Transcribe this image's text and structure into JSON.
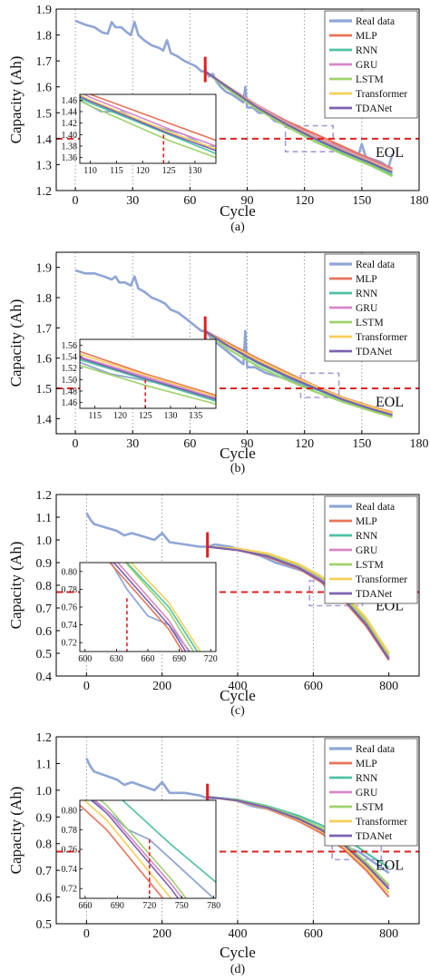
{
  "figure": {
    "series_names": [
      "Real data",
      "MLP",
      "RNN",
      "GRU",
      "LSTM",
      "Transformer",
      "TDANet"
    ],
    "colors": {
      "Real data": "#8fa6d6",
      "MLP": "#e8735a",
      "RNN": "#4fc2a4",
      "GRU": "#d886c8",
      "LSTM": "#9fd36a",
      "Transformer": "#f7cf5a",
      "TDANet": "#7b62b0",
      "eol_line": "#e02020",
      "start_marker": "#e02020",
      "zoom_box": "#a99ad8",
      "gridline": "#888888"
    },
    "eol_label": "EOL"
  },
  "chart_data": [
    {
      "type": "line",
      "panel_label": "(a)",
      "xlabel": "Cycle",
      "ylabel": "Capacity (Ah)",
      "xlim": [
        -10,
        180
      ],
      "ylim": [
        1.2,
        1.9
      ],
      "xticks": [
        0,
        30,
        60,
        90,
        120,
        150,
        180
      ],
      "xticklabels": [
        "0",
        "30",
        "60",
        "90",
        "120",
        "150",
        "180"
      ],
      "yticks": [
        1.2,
        1.3,
        1.4,
        1.5,
        1.6,
        1.7,
        1.8,
        1.9
      ],
      "yticklabels": [
        "1.2",
        "1.3",
        "1.4",
        "1.5",
        "1.6",
        "1.7",
        "1.8",
        "1.9"
      ],
      "grid_x": [
        0,
        30,
        60,
        90,
        120,
        150
      ],
      "eol": 1.4,
      "prediction_start": 68,
      "legend": "top-right",
      "zoom_region": {
        "x": [
          110,
          135
        ],
        "y": [
          1.35,
          1.45
        ]
      },
      "real_data": {
        "x": [
          0,
          5,
          10,
          14,
          17,
          19,
          21,
          24,
          27,
          29,
          31,
          33,
          36,
          40,
          44,
          46,
          48,
          50,
          53,
          57,
          60,
          63,
          66,
          68,
          70,
          72,
          74,
          76,
          79,
          82,
          84,
          86,
          88,
          89,
          90,
          93,
          96,
          100,
          104,
          108,
          112,
          116,
          120,
          124,
          128,
          132,
          136,
          140,
          144,
          146,
          148,
          150,
          152,
          156,
          160,
          164,
          166
        ],
        "y": [
          1.855,
          1.84,
          1.83,
          1.81,
          1.805,
          1.85,
          1.83,
          1.83,
          1.81,
          1.8,
          1.85,
          1.8,
          1.78,
          1.76,
          1.75,
          1.74,
          1.78,
          1.73,
          1.72,
          1.7,
          1.69,
          1.68,
          1.66,
          1.66,
          1.64,
          1.65,
          1.62,
          1.6,
          1.58,
          1.57,
          1.56,
          1.55,
          1.54,
          1.6,
          1.52,
          1.52,
          1.5,
          1.5,
          1.47,
          1.46,
          1.44,
          1.44,
          1.42,
          1.41,
          1.4,
          1.38,
          1.38,
          1.36,
          1.35,
          1.34,
          1.33,
          1.38,
          1.33,
          1.32,
          1.31,
          1.29,
          1.34
        ]
      },
      "predictions": {
        "x": [
          68,
          80,
          95,
          110,
          125,
          140,
          155,
          166
        ],
        "MLP": [
          1.66,
          1.6,
          1.53,
          1.47,
          1.42,
          1.37,
          1.32,
          1.285
        ],
        "RNN": [
          1.66,
          1.595,
          1.52,
          1.455,
          1.4,
          1.345,
          1.3,
          1.26
        ],
        "GRU": [
          1.66,
          1.6,
          1.53,
          1.465,
          1.41,
          1.36,
          1.315,
          1.28
        ],
        "LSTM": [
          1.66,
          1.59,
          1.515,
          1.45,
          1.39,
          1.34,
          1.295,
          1.255
        ],
        "Transformer": [
          1.66,
          1.6,
          1.525,
          1.46,
          1.405,
          1.355,
          1.31,
          1.275
        ],
        "TDANet": [
          1.66,
          1.598,
          1.522,
          1.458,
          1.402,
          1.352,
          1.306,
          1.27
        ]
      },
      "inset": {
        "xlim": [
          108,
          134
        ],
        "ylim": [
          1.35,
          1.47
        ],
        "xticks": [
          110,
          115,
          120,
          125,
          130
        ],
        "xticklabels": [
          "110",
          "115",
          "120",
          "125",
          "130"
        ],
        "yticks": [
          1.36,
          1.38,
          1.4,
          1.42,
          1.44,
          1.46
        ],
        "yticklabels": [
          "1.36",
          "1.38",
          "1.40",
          "1.42",
          "1.44",
          "1.46"
        ],
        "eol_x": 124
      }
    },
    {
      "type": "line",
      "panel_label": "(b)",
      "xlabel": "Cycle",
      "ylabel": "Capacity (Ah)",
      "xlim": [
        -10,
        180
      ],
      "ylim": [
        1.35,
        1.95
      ],
      "xticks": [
        0,
        30,
        60,
        90,
        120,
        150,
        180
      ],
      "xticklabels": [
        "0",
        "30",
        "60",
        "90",
        "120",
        "150",
        "180"
      ],
      "yticks": [
        1.4,
        1.5,
        1.6,
        1.7,
        1.8,
        1.9
      ],
      "yticklabels": [
        "1.4",
        "1.5",
        "1.6",
        "1.7",
        "1.8",
        "1.9"
      ],
      "grid_x": [
        0,
        30,
        60,
        90,
        120,
        150
      ],
      "eol": 1.5,
      "prediction_start": 68,
      "legend": "top-right",
      "zoom_region": {
        "x": [
          118,
          138
        ],
        "y": [
          1.47,
          1.55
        ]
      },
      "real_data": {
        "x": [
          0,
          5,
          10,
          15,
          19,
          21,
          23,
          26,
          29,
          31,
          33,
          36,
          40,
          44,
          47,
          50,
          54,
          58,
          62,
          66,
          68,
          72,
          76,
          80,
          84,
          88,
          89,
          90,
          94,
          100,
          106,
          112,
          118,
          124,
          130,
          136,
          142,
          148,
          154,
          160,
          166
        ],
        "y": [
          1.89,
          1.88,
          1.88,
          1.87,
          1.86,
          1.87,
          1.85,
          1.85,
          1.84,
          1.87,
          1.83,
          1.82,
          1.8,
          1.79,
          1.78,
          1.76,
          1.75,
          1.73,
          1.71,
          1.69,
          1.69,
          1.66,
          1.64,
          1.62,
          1.6,
          1.58,
          1.69,
          1.57,
          1.57,
          1.55,
          1.54,
          1.53,
          1.51,
          1.5,
          1.49,
          1.48,
          1.46,
          1.45,
          1.44,
          1.43,
          1.42
        ]
      },
      "predictions": {
        "x": [
          68,
          80,
          95,
          110,
          125,
          140,
          155,
          166
        ],
        "MLP": [
          1.69,
          1.65,
          1.6,
          1.555,
          1.51,
          1.47,
          1.44,
          1.42
        ],
        "RNN": [
          1.69,
          1.64,
          1.585,
          1.54,
          1.5,
          1.46,
          1.43,
          1.41
        ],
        "GRU": [
          1.69,
          1.645,
          1.59,
          1.545,
          1.505,
          1.465,
          1.435,
          1.415
        ],
        "LSTM": [
          1.69,
          1.63,
          1.575,
          1.53,
          1.49,
          1.455,
          1.425,
          1.405
        ],
        "Transformer": [
          1.69,
          1.645,
          1.595,
          1.55,
          1.508,
          1.468,
          1.438,
          1.418
        ],
        "TDANet": [
          1.69,
          1.64,
          1.588,
          1.543,
          1.502,
          1.463,
          1.432,
          1.412
        ]
      },
      "inset": {
        "xlim": [
          112,
          139
        ],
        "ylim": [
          1.45,
          1.57
        ],
        "xticks": [
          115,
          120,
          125,
          130,
          135
        ],
        "xticklabels": [
          "115",
          "120",
          "125",
          "130",
          "135"
        ],
        "yticks": [
          1.46,
          1.48,
          1.5,
          1.52,
          1.54,
          1.56
        ],
        "yticklabels": [
          "1.46",
          "1.48",
          "1.50",
          "1.52",
          "1.54",
          "1.56"
        ],
        "eol_x": 125
      }
    },
    {
      "type": "line",
      "panel_label": "(c)",
      "xlabel": "Cycle",
      "ylabel": "Capacity (Ah)",
      "xlim": [
        -80,
        880
      ],
      "ylim": [
        0.4,
        1.2
      ],
      "xticks": [
        0,
        200,
        400,
        600,
        800
      ],
      "xticklabels": [
        "0",
        "200",
        "400",
        "600",
        "800"
      ],
      "yticks": [
        0.4,
        0.5,
        0.6,
        0.7,
        0.8,
        0.9,
        1.0,
        1.1,
        1.2
      ],
      "yticklabels": [
        "0.4",
        "0.5",
        "0.6",
        "0.7",
        "0.8",
        "0.9",
        "1.0",
        "1.1",
        "1.2"
      ],
      "grid_x": [
        0,
        200,
        400,
        600
      ],
      "eol": 0.77,
      "prediction_start": 320,
      "legend": "top-right",
      "zoom_region": {
        "x": [
          590,
          730
        ],
        "y": [
          0.71,
          0.82
        ]
      },
      "real_data": {
        "x": [
          0,
          10,
          20,
          40,
          60,
          80,
          100,
          120,
          140,
          160,
          180,
          200,
          220,
          260,
          300,
          320,
          340,
          380,
          420,
          460,
          500,
          540,
          580,
          600,
          620,
          640,
          660,
          680,
          700,
          720,
          740,
          760,
          780,
          800
        ],
        "y": [
          1.12,
          1.09,
          1.07,
          1.06,
          1.05,
          1.04,
          1.02,
          1.03,
          1.02,
          1.01,
          1.0,
          1.03,
          0.99,
          0.98,
          0.97,
          0.97,
          0.98,
          0.97,
          0.95,
          0.93,
          0.9,
          0.88,
          0.86,
          0.85,
          0.82,
          0.78,
          0.75,
          0.74,
          0.71,
          0.68,
          0.62,
          0.58,
          0.53,
          0.48
        ]
      },
      "predictions": {
        "x": [
          320,
          400,
          480,
          560,
          620,
          680,
          740,
          800
        ],
        "MLP": [
          0.97,
          0.955,
          0.925,
          0.875,
          0.815,
          0.735,
          0.62,
          0.47
        ],
        "RNN": [
          0.97,
          0.96,
          0.935,
          0.89,
          0.835,
          0.76,
          0.65,
          0.5
        ],
        "GRU": [
          0.97,
          0.955,
          0.93,
          0.88,
          0.825,
          0.745,
          0.635,
          0.48
        ],
        "LSTM": [
          0.97,
          0.96,
          0.935,
          0.89,
          0.835,
          0.755,
          0.64,
          0.49
        ],
        "Transformer": [
          0.97,
          0.962,
          0.94,
          0.895,
          0.84,
          0.765,
          0.655,
          0.5
        ],
        "TDANet": [
          0.97,
          0.955,
          0.928,
          0.878,
          0.82,
          0.74,
          0.628,
          0.475
        ]
      },
      "inset": {
        "xlim": [
          595,
          725
        ],
        "ylim": [
          0.71,
          0.81
        ],
        "xticks": [
          600,
          630,
          660,
          690,
          720
        ],
        "xticklabels": [
          "600",
          "630",
          "660",
          "690",
          "720"
        ],
        "yticks": [
          0.72,
          0.74,
          0.76,
          0.78,
          0.8
        ],
        "yticklabels": [
          "0.72",
          "0.74",
          "0.76",
          "0.78",
          "0.80"
        ],
        "eol_x": 640
      }
    },
    {
      "type": "line",
      "panel_label": "(d)",
      "xlabel": "Cycle",
      "ylabel": "Capacity (Ah)",
      "xlim": [
        -80,
        880
      ],
      "ylim": [
        0.5,
        1.2
      ],
      "xticks": [
        0,
        200,
        400,
        600,
        800
      ],
      "xticklabels": [
        "0",
        "200",
        "400",
        "600",
        "800"
      ],
      "yticks": [
        0.5,
        0.6,
        0.7,
        0.8,
        0.9,
        1.0,
        1.1,
        1.2
      ],
      "yticklabels": [
        "0.5",
        "0.6",
        "0.7",
        "0.8",
        "0.9",
        "1.0",
        "1.1",
        "1.2"
      ],
      "grid_x": [
        0,
        200,
        400,
        600
      ],
      "eol": 0.77,
      "prediction_start": 320,
      "legend": "top-right",
      "zoom_region": {
        "x": [
          650,
          780
        ],
        "y": [
          0.74,
          0.81
        ]
      },
      "real_data": {
        "x": [
          0,
          10,
          20,
          40,
          60,
          80,
          100,
          120,
          140,
          160,
          180,
          200,
          220,
          260,
          300,
          320,
          360,
          400,
          440,
          480,
          520,
          560,
          600,
          640,
          680,
          700,
          720,
          740,
          760,
          780,
          800
        ],
        "y": [
          1.12,
          1.09,
          1.07,
          1.06,
          1.05,
          1.04,
          1.02,
          1.03,
          1.02,
          1.01,
          1.0,
          1.03,
          0.99,
          0.99,
          0.98,
          0.97,
          0.97,
          0.96,
          0.94,
          0.93,
          0.91,
          0.89,
          0.86,
          0.83,
          0.8,
          0.78,
          0.77,
          0.75,
          0.73,
          0.71,
          0.69
        ]
      },
      "predictions": {
        "x": [
          320,
          400,
          480,
          560,
          620,
          680,
          740,
          800
        ],
        "MLP": [
          0.975,
          0.96,
          0.93,
          0.885,
          0.84,
          0.78,
          0.7,
          0.6
        ],
        "RNN": [
          0.975,
          0.965,
          0.94,
          0.905,
          0.87,
          0.825,
          0.765,
          0.71
        ],
        "GRU": [
          0.975,
          0.962,
          0.935,
          0.895,
          0.855,
          0.8,
          0.725,
          0.64
        ],
        "LSTM": [
          0.975,
          0.963,
          0.937,
          0.898,
          0.86,
          0.805,
          0.73,
          0.645
        ],
        "Transformer": [
          0.975,
          0.96,
          0.932,
          0.89,
          0.848,
          0.79,
          0.71,
          0.615
        ],
        "TDANet": [
          0.975,
          0.961,
          0.934,
          0.893,
          0.852,
          0.797,
          0.72,
          0.63
        ]
      },
      "inset": {
        "xlim": [
          655,
          782
        ],
        "ylim": [
          0.71,
          0.81
        ],
        "xticks": [
          660,
          690,
          720,
          750,
          780
        ],
        "xticklabels": [
          "660",
          "690",
          "720",
          "750",
          "780"
        ],
        "yticks": [
          0.72,
          0.74,
          0.76,
          0.78,
          0.8
        ],
        "yticklabels": [
          "0.72",
          "0.74",
          "0.76",
          "0.78",
          "0.80"
        ],
        "eol_x": 720
      }
    }
  ]
}
